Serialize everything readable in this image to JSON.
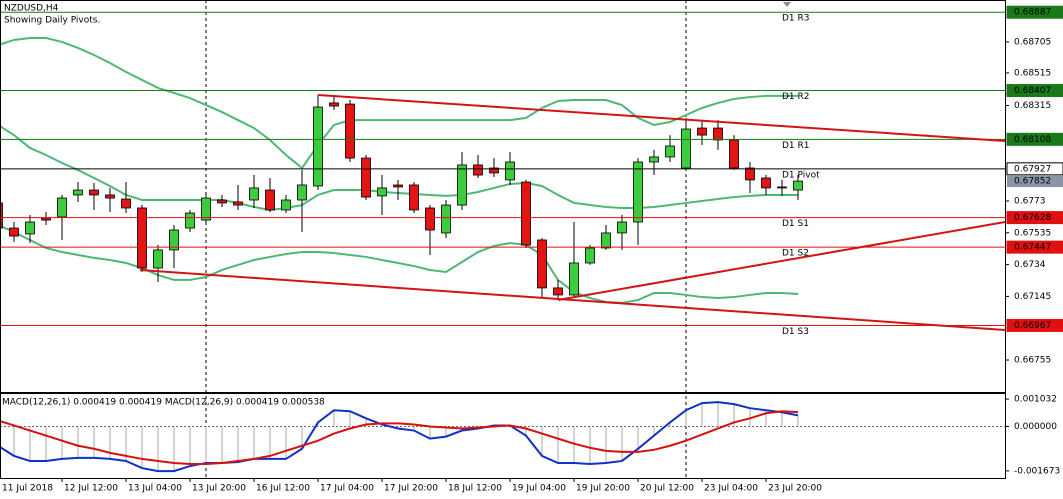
{
  "chart_data": [
    {
      "type": "candlestick",
      "title": "NZDUSD,H4",
      "subtitle": "Showing Daily Pivots.",
      "categories": [
        "11 Jul 2018",
        null,
        null,
        null,
        "12 Jul 12:00",
        null,
        null,
        null,
        "13 Jul 04:00",
        null,
        null,
        null,
        "13 Jul 20:00",
        null,
        null,
        null,
        "16 Jul 12:00",
        null,
        null,
        null,
        "17 Jul 04:00",
        null,
        null,
        null,
        "17 Jul 20:00",
        null,
        null,
        null,
        "18 Jul 12:00",
        null,
        null,
        null,
        "19 Jul 04:00",
        null,
        null,
        null,
        "19 Jul 20:00",
        null,
        null,
        null,
        "20 Jul 12:00",
        null,
        null,
        null,
        "23 Jul 04:00",
        null,
        null,
        null,
        "23 Jul 20:00",
        null,
        null
      ],
      "open": [
        0.67718,
        0.67564,
        0.67528,
        0.67626,
        0.67632,
        0.67767,
        0.67797,
        0.67767,
        0.67742,
        0.67687,
        0.67319,
        0.6743,
        0.67564,
        0.67613,
        0.67736,
        0.67724,
        0.67736,
        0.67797,
        0.67675,
        0.67736,
        0.67822,
        0.68331,
        0.68324,
        0.67993,
        0.67761,
        0.67828,
        0.67828,
        0.67687,
        0.67534,
        0.67705,
        0.67951,
        0.67932,
        0.67859,
        0.67846,
        0.67491,
        0.67197,
        0.67154,
        0.6735,
        0.67442,
        0.67534,
        0.67601,
        0.67969,
        0.68,
        0.67932,
        0.68177,
        0.68177,
        0.68104,
        0.67932,
        0.67871,
        0.67816,
        0.67797
      ],
      "high": [
        0.67736,
        0.67601,
        0.67644,
        0.67662,
        0.67767,
        0.67846,
        0.6784,
        0.6781,
        0.67846,
        0.67705,
        0.6746,
        0.67583,
        0.67675,
        0.67767,
        0.67767,
        0.67828,
        0.67889,
        0.67871,
        0.67767,
        0.6792,
        0.6838,
        0.6838,
        0.68349,
        0.68012,
        0.67889,
        0.67859,
        0.67846,
        0.67705,
        0.67736,
        0.6803,
        0.68012,
        0.67993,
        0.6803,
        0.67859,
        0.67503,
        0.67246,
        0.67601,
        0.6746,
        0.67583,
        0.67644,
        0.67993,
        0.68043,
        0.68134,
        0.68239,
        0.68226,
        0.68226,
        0.68134,
        0.67969,
        0.67889,
        0.67859,
        0.67889
      ],
      "low": [
        0.6754,
        0.67479,
        0.67472,
        0.67583,
        0.67491,
        0.67724,
        0.67675,
        0.67662,
        0.67656,
        0.67295,
        0.67233,
        0.67319,
        0.6754,
        0.67583,
        0.67693,
        0.67675,
        0.67687,
        0.67662,
        0.67656,
        0.6754,
        0.67797,
        0.68288,
        0.67969,
        0.67736,
        0.67644,
        0.67736,
        0.67656,
        0.67399,
        0.67503,
        0.67675,
        0.67871,
        0.67877,
        0.67828,
        0.67442,
        0.67135,
        0.67123,
        0.67135,
        0.67338,
        0.6743,
        0.6743,
        0.6746,
        0.67889,
        0.67969,
        0.6792,
        0.68073,
        0.68043,
        0.6792,
        0.67779,
        0.67767,
        0.67761,
        0.67736
      ],
      "close": [
        0.67564,
        0.67515,
        0.67601,
        0.67613,
        0.67748,
        0.67797,
        0.67767,
        0.67748,
        0.67687,
        0.67319,
        0.6743,
        0.67552,
        0.67656,
        0.67748,
        0.67718,
        0.67705,
        0.6781,
        0.67675,
        0.67736,
        0.67828,
        0.68306,
        0.68312,
        0.67993,
        0.67754,
        0.6781,
        0.67816,
        0.67675,
        0.67552,
        0.67705,
        0.67951,
        0.67889,
        0.67902,
        0.67969,
        0.6746,
        0.67197,
        0.67154,
        0.6735,
        0.67442,
        0.67534,
        0.67601,
        0.67969,
        0.68,
        0.68067,
        0.68171,
        0.68134,
        0.68104,
        0.67932,
        0.67859,
        0.6781,
        0.6781,
        0.67852
      ],
      "up_color": "#3ccc3c",
      "down_color": "#e21414",
      "overlays": [
        {
          "color": "#4cb874",
          "values": [
            0.68686,
            0.68717,
            0.68729,
            0.68729,
            0.68705,
            0.68668,
            0.68625,
            0.68576,
            0.68521,
            0.68472,
            0.68423,
            0.68392,
            0.68361,
            0.68318,
            0.68275,
            0.68226,
            0.68177,
            0.68104,
            0.68012,
            0.67932,
            0.68073,
            0.68196,
            0.68226,
            0.68226,
            0.68226,
            0.68226,
            0.68226,
            0.68226,
            0.68226,
            0.68226,
            0.68226,
            0.68226,
            0.68226,
            0.68239,
            0.683,
            0.68343,
            0.68349,
            0.68349,
            0.68349,
            0.68318,
            0.68239,
            0.68196,
            0.68214,
            0.68257,
            0.683,
            0.68331,
            0.68355,
            0.68367,
            0.68374,
            0.68374,
            0.68374
          ]
        },
        {
          "color": "#4cb874",
          "values": [
            0.68196,
            0.68134,
            0.68055,
            0.68012,
            0.67963,
            0.6792,
            0.67871,
            0.67822,
            0.67767,
            0.67736,
            0.67736,
            0.67736,
            0.67736,
            0.67736,
            0.67736,
            0.67718,
            0.67693,
            0.67675,
            0.67687,
            0.67705,
            0.67767,
            0.67797,
            0.67797,
            0.67797,
            0.67785,
            0.67779,
            0.67773,
            0.67767,
            0.67761,
            0.67767,
            0.67785,
            0.6781,
            0.67834,
            0.6784,
            0.67822,
            0.67767,
            0.67718,
            0.67705,
            0.67693,
            0.67687,
            0.67687,
            0.67693,
            0.67705,
            0.67718,
            0.6773,
            0.67742,
            0.67754,
            0.67761,
            0.67767,
            0.67767,
            0.67767
          ]
        },
        {
          "color": "#4cb874",
          "values": [
            0.67583,
            0.6754,
            0.67491,
            0.67442,
            0.67417,
            0.67399,
            0.67381,
            0.67368,
            0.6735,
            0.67319,
            0.67276,
            0.67246,
            0.67246,
            0.67264,
            0.67307,
            0.67338,
            0.67368,
            0.67387,
            0.67405,
            0.67417,
            0.67417,
            0.67411,
            0.67399,
            0.67387,
            0.67368,
            0.6735,
            0.67331,
            0.67307,
            0.67295,
            0.67356,
            0.67417,
            0.67454,
            0.67472,
            0.6746,
            0.67399,
            0.67246,
            0.67172,
            0.67135,
            0.67111,
            0.67105,
            0.67123,
            0.67166,
            0.67166,
            0.67154,
            0.67141,
            0.67135,
            0.67141,
            0.67154,
            0.67166,
            0.67166,
            0.6716
          ]
        }
      ],
      "pivots": [
        {
          "label": "D1 R3",
          "value": 0.68887,
          "color": "#1a7a1a"
        },
        {
          "label": "D1 R2",
          "value": 0.68407,
          "color": "#1a7a1a"
        },
        {
          "label": "D1 R1",
          "value": 0.68108,
          "color": "#1a7a1a"
        },
        {
          "label": "D1 Pivot",
          "value": 0.67927,
          "color": "#000000"
        },
        {
          "label": "D1 S1",
          "value": 0.67628,
          "color": "#e01010"
        },
        {
          "label": "D1 S2",
          "value": 0.67447,
          "color": "#e01010"
        },
        {
          "label": "D1 S3",
          "value": 0.66967,
          "color": "#e01010"
        }
      ],
      "current_price": 0.67852,
      "ylim": [
        0.66559,
        0.68962
      ],
      "yticks": [
        0.68705,
        0.68515,
        0.68315,
        0.6773,
        0.67535,
        0.6734,
        0.67145,
        0.66755
      ]
    },
    {
      "type": "macd",
      "label": "MACD(12,26,1) 0.000419 0.000419 MACD(12,26,9) 0.000419 0.000538",
      "histogram_color": "#a8a8a8",
      "series": [
        {
          "color": "#1030c8",
          "values": [
            -0.000726,
            -0.001108,
            -0.001299,
            -0.001299,
            -0.001222,
            -0.001184,
            -0.001184,
            -0.001222,
            -0.001299,
            -0.001566,
            -0.001681,
            -0.001681,
            -0.00149,
            -0.001375,
            -0.001375,
            -0.001337,
            -0.001222,
            -0.001222,
            -0.001222,
            -0.00084,
            0.000153,
            0.000611,
            0.000573,
            0.000306,
            7.6e-05,
            -7.6e-05,
            -0.000153,
            -0.000458,
            -0.000382,
            -0.000153,
            -7.6e-05,
            3.8e-05,
            3.8e-05,
            -0.000344,
            -0.001108,
            -0.001375,
            -0.001375,
            -0.001413,
            -0.001375,
            -0.001299,
            -0.00084,
            -0.000344,
            0.000153,
            0.000611,
            0.000879,
            0.000917,
            0.00084,
            0.000688,
            0.000611,
            0.000535,
            0.000419
          ]
        },
        {
          "color": "#d81010",
          "values": [
            0.000229,
            3.8e-05,
            -0.000153,
            -0.000344,
            -0.000535,
            -0.000726,
            -0.00084,
            -0.000993,
            -0.001108,
            -0.001222,
            -0.001299,
            -0.001375,
            -0.001413,
            -0.001413,
            -0.001375,
            -0.001299,
            -0.001222,
            -0.001108,
            -0.000917,
            -0.000726,
            -0.000535,
            -0.000267,
            -7.6e-05,
            7.6e-05,
            0.000115,
            0.000115,
            7.6e-05,
            0,
            -3.8e-05,
            -7.6e-05,
            -3.8e-05,
            0,
            3.8e-05,
            -7.6e-05,
            -0.000267,
            -0.000458,
            -0.000649,
            -0.000802,
            -0.000917,
            -0.000955,
            -0.000955,
            -0.000879,
            -0.000726,
            -0.000535,
            -0.000306,
            -7.6e-05,
            0.000153,
            0.000306,
            0.000497,
            0.000573,
            0.000538
          ]
        }
      ],
      "ylim": [
        -0.00194,
        0.00126
      ],
      "yticks": [
        0.001032,
        {
          "value": 0,
          "label": "0.000000"
        },
        -0.001673
      ]
    }
  ]
}
